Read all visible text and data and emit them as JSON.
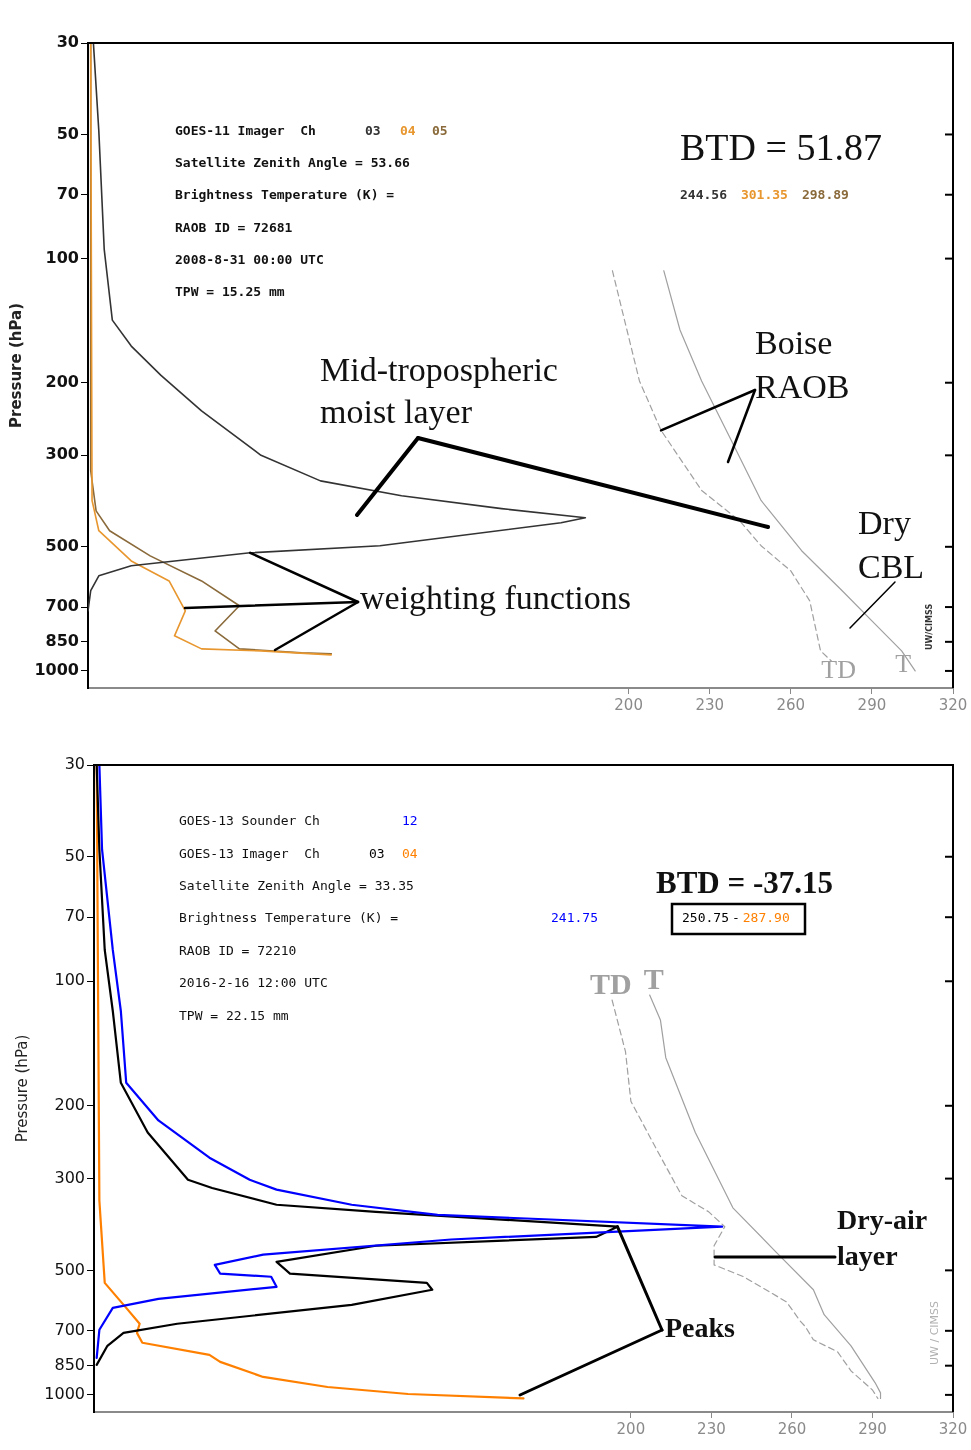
{
  "chart_data": [
    {
      "type": "line",
      "ylabel": "Pressure (hPa)",
      "log": "y",
      "marker": "none",
      "xlim": [
        0,
        320
      ],
      "xticks": [
        200,
        230,
        260,
        290,
        320
      ],
      "ylim": [
        1100,
        30
      ],
      "yticks": [
        30,
        50,
        70,
        100,
        200,
        300,
        500,
        700,
        850,
        1000
      ],
      "annotations": [
        "GOES-11 Imager  Ch",
        "Satellite Zenith Angle = 53.66",
        "Brightness Temperature (K) =",
        "RAOB ID = 72681",
        "2008-8-31 00:00 UTC",
        "TPW = 15.25 mm",
        "BTD = 51.87",
        "244.56 301.35 298.89",
        "Mid-tropospheric moist layer",
        {
          "text": "weighting functions",
          "x": 60,
          "y": 517
        },
        {
          "text": "Boise RAOB",
          "x": 212,
          "y": 261
        },
        "Dry CBL",
        "UW/CIMSS"
      ],
      "series": [
        {
          "name": "03",
          "color": "#333333",
          "x": [
            2,
            4,
            6,
            9,
            16,
            27,
            42,
            64,
            86,
            116,
            153,
            184,
            175,
            108,
            60,
            16,
            4,
            1,
            0
          ],
          "values": [
            30,
            49,
            95,
            141,
            163,
            192,
            234,
            300,
            346,
            376,
            404,
            425,
            437,
            497,
            517,
            556,
            588,
            639,
            715
          ]
        },
        {
          "name": "04",
          "color": "#e8962e",
          "x": [
            1,
            1.5,
            4,
            16,
            30,
            36,
            32,
            42,
            64,
            90
          ],
          "values": [
            30,
            386,
            457,
            541,
            605,
            715,
            822,
            884,
            894,
            914
          ]
        },
        {
          "name": "05",
          "color": "#8a6a3a",
          "x": [
            1,
            1,
            3,
            8,
            23,
            42,
            56,
            47,
            56,
            79,
            90
          ],
          "values": [
            30,
            327,
            409,
            457,
            526,
            605,
            695,
            800,
            884,
            904,
            909
          ]
        },
        {
          "name": "TD",
          "color": "#a0a0a0",
          "line_style": "dashed",
          "x": [
            194,
            204,
            212,
            227,
            241,
            249,
            260,
            267,
            269,
            271,
            275
          ],
          "values": [
            107,
            198,
            261,
            365,
            432,
            497,
            572,
            676,
            778,
            894,
            946
          ]
        },
        {
          "name": "T",
          "color": "#a0a0a0",
          "line_style": "solid",
          "x": [
            213,
            219,
            227,
            238,
            249,
            264,
            279,
            290,
            301,
            306
          ],
          "values": [
            107,
            149,
            198,
            276,
            386,
            511,
            639,
            756,
            894,
            1000
          ]
        }
      ]
    },
    {
      "type": "line",
      "ylabel": "Pressure (hPa)",
      "log": "y",
      "marker": "none",
      "xlim": [
        0,
        320
      ],
      "xticks": [
        200,
        230,
        260,
        290,
        320
      ],
      "ylim": [
        1100,
        30
      ],
      "yticks": [
        30,
        50,
        70,
        100,
        200,
        300,
        500,
        700,
        850,
        1000
      ],
      "annotations": [
        "GOES-13 Sounder Ch",
        "GOES-13 Imager  Ch",
        "Satellite Zenith Angle = 33.35",
        "Brightness Temperature (K) =",
        "RAOB ID = 72210",
        "2016-2-16 12:00 UTC",
        "TPW = 22.15 mm",
        "BTD = -37.15",
        "241.75",
        "250.75 - 287.90",
        {
          "text": "Peaks",
          "x": 195,
          "y": 392
        },
        "Dry-air layer",
        "UW / CIMSS"
      ],
      "series": [
        {
          "name": "12",
          "color": "#0000ff",
          "x": [
            2,
            3,
            7,
            10,
            12,
            24,
            43,
            58,
            68,
            96,
            128,
            234,
            133,
            63,
            45,
            47,
            66,
            68,
            24,
            7,
            2,
            1
          ],
          "values": [
            30,
            48,
            84,
            118,
            176,
            217,
            267,
            302,
            319,
            347,
            367,
            392,
            421,
            458,
            485,
            509,
            518,
            548,
            586,
            616,
            696,
            814
          ]
        },
        {
          "name": "03",
          "color": "#000000",
          "x": [
            1,
            2,
            4,
            7,
            10,
            20,
            35,
            44,
            68,
            105,
            195,
            187,
            105,
            68,
            73,
            124,
            126,
            96,
            31,
            11,
            5,
            1
          ],
          "values": [
            30,
            48,
            84,
            118,
            176,
            232,
            302,
            316,
            347,
            361,
            392,
            415,
            436,
            477,
            509,
            536,
            557,
            606,
            673,
            708,
            761,
            846
          ]
        },
        {
          "name": "04",
          "color": "#ff8000",
          "x": [
            1,
            2,
            4,
            12,
            17,
            16,
            18,
            43,
            47,
            63,
            87,
            117,
            160
          ],
          "values": [
            30,
            339,
            536,
            616,
            673,
            708,
            748,
            800,
            832,
            905,
            957,
            995,
            1020
          ]
        },
        {
          "name": "TD",
          "color": "#a0a0a0",
          "line_style": "dashed",
          "x": [
            193,
            198,
            200,
            210,
            219,
            229,
            235,
            231,
            231,
            242,
            258,
            263,
            265,
            268,
            277,
            282,
            290,
            292
          ],
          "values": [
            111,
            148,
            195,
            258,
            330,
            361,
            392,
            436,
            485,
            518,
            596,
            662,
            684,
            736,
            787,
            875,
            973,
            1020
          ]
        },
        {
          "name": "T",
          "color": "#a0a0a0",
          "line_style": "solid",
          "x": [
            207,
            211,
            213,
            224,
            238,
            254,
            268,
            272,
            282,
            291,
            293,
            293
          ],
          "values": [
            108,
            124,
            153,
            232,
            353,
            451,
            557,
            640,
            761,
            935,
            989,
            1020
          ]
        }
      ]
    }
  ]
}
